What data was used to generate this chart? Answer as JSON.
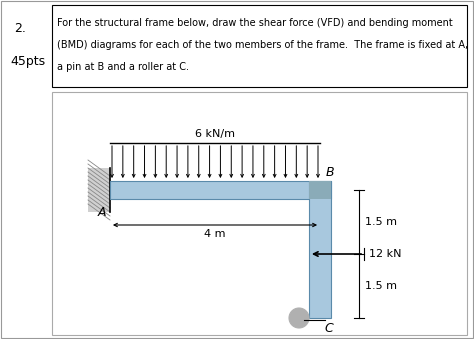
{
  "title_num": "2.",
  "title_pts": "45pts",
  "problem_text": "For the structural frame below, draw the shear force (VFD) and bending moment\n(BMD) diagrams for each of the two members of the frame.  The frame is fixed at A,\na pin at B and a roller at C.",
  "bg_color": "#ffffff",
  "frame_color": "#a8c8de",
  "frame_edge_color": "#5a8aaa",
  "load_color": "#000000",
  "label_A": "A",
  "label_B": "B",
  "label_C": "C",
  "load_label": "6 kN/m",
  "dim_horiz": "4 m",
  "dim_vert1": "1.5 m",
  "dim_vert2": "1.5 m",
  "force_label": "12 kN"
}
